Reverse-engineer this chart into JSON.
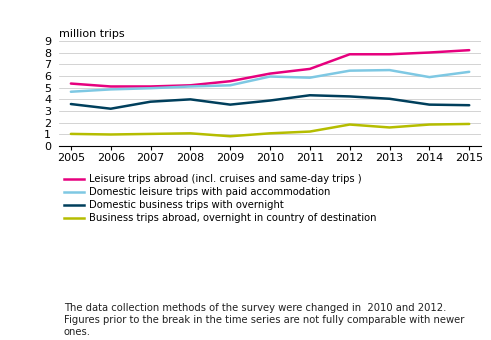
{
  "years": [
    2005,
    2006,
    2007,
    2008,
    2009,
    2010,
    2011,
    2012,
    2013,
    2014,
    2015
  ],
  "series": {
    "leisure_abroad": {
      "label": "Leisure trips abroad (incl. cruises and same-day trips )",
      "color": "#e6007e",
      "values": [
        5.35,
        5.1,
        5.1,
        5.2,
        5.55,
        6.2,
        6.6,
        7.85,
        7.85,
        8.0,
        8.2
      ]
    },
    "domestic_leisure_paid": {
      "label": "Domestic leisure trips with paid accommodation",
      "color": "#7ec8e3",
      "values": [
        4.65,
        4.85,
        4.95,
        5.1,
        5.2,
        5.95,
        5.85,
        6.45,
        6.5,
        5.9,
        6.35
      ]
    },
    "domestic_business": {
      "label": "Domestic business trips with overnight",
      "color": "#003f5c",
      "values": [
        3.6,
        3.2,
        3.8,
        4.0,
        3.55,
        3.9,
        4.35,
        4.25,
        4.05,
        3.55,
        3.5
      ]
    },
    "business_abroad": {
      "label": "Business trips abroad, overnight in country of destination",
      "color": "#b5bd00",
      "values": [
        1.05,
        1.0,
        1.05,
        1.1,
        0.85,
        1.1,
        1.25,
        1.85,
        1.6,
        1.85,
        1.9
      ]
    }
  },
  "ylabel": "million trips",
  "ylim": [
    0,
    9
  ],
  "yticks": [
    0,
    1,
    2,
    3,
    4,
    5,
    6,
    7,
    8,
    9
  ],
  "xlim": [
    2004.7,
    2015.3
  ],
  "footnote": "The data collection methods of the survey were changed in  2010 and 2012.\nFigures prior to the break in the time series are not fully comparable with newer\nones.",
  "background_color": "#ffffff",
  "grid_color": "#cccccc",
  "line_width": 1.8,
  "legend_fontsize": 7.2,
  "ylabel_fontsize": 8.0,
  "tick_fontsize": 8.0,
  "footnote_fontsize": 7.2
}
